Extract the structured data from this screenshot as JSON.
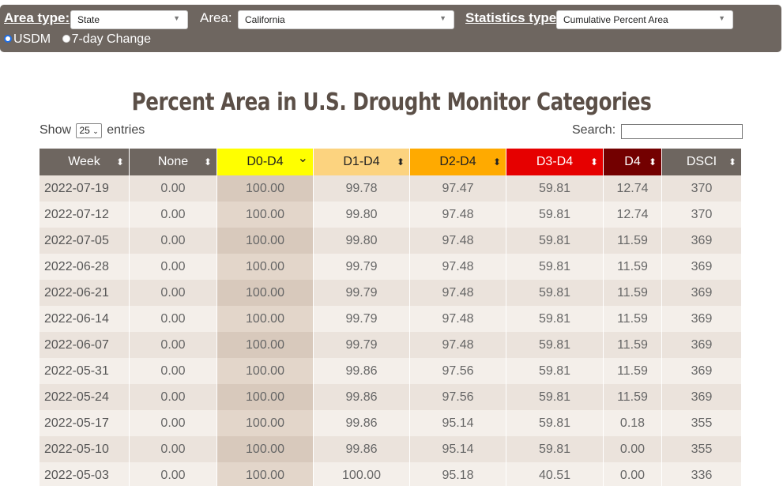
{
  "controls": {
    "area_type_label": "Area type:",
    "area_type_value": "State",
    "area_label": "Area:",
    "area_value": "California",
    "stats_type_label": "Statistics type:",
    "stats_type_value": "Cumulative Percent Area",
    "radio_usdm": "USDM",
    "radio_change": "7-day Change",
    "selected_radio": "USDM"
  },
  "title": "Percent Area in U.S. Drought Monitor Categories",
  "show_label": "Show",
  "entries_value": "25",
  "entries_label": "entries",
  "search_label": "Search:",
  "columns": [
    {
      "label": "Week",
      "bg": "#6e6660",
      "color": "#ffffff",
      "sort": "both"
    },
    {
      "label": "None",
      "bg": "#6e6660",
      "color": "#ffffff",
      "sort": "both"
    },
    {
      "label": "D0-D4",
      "bg": "#ffff00",
      "color": "#222222",
      "sort": "desc"
    },
    {
      "label": "D1-D4",
      "bg": "#fcd37f",
      "color": "#222222",
      "sort": "both"
    },
    {
      "label": "D2-D4",
      "bg": "#ffaa00",
      "color": "#222222",
      "sort": "both"
    },
    {
      "label": "D3-D4",
      "bg": "#e60000",
      "color": "#ffffff",
      "sort": "both"
    },
    {
      "label": "D4",
      "bg": "#730000",
      "color": "#ffffff",
      "sort": "both"
    },
    {
      "label": "DSCI",
      "bg": "#6e6660",
      "color": "#ffffff",
      "sort": "both"
    }
  ],
  "rows": [
    [
      "2022-07-19",
      "0.00",
      "100.00",
      "99.78",
      "97.47",
      "59.81",
      "12.74",
      "370"
    ],
    [
      "2022-07-12",
      "0.00",
      "100.00",
      "99.80",
      "97.48",
      "59.81",
      "12.74",
      "370"
    ],
    [
      "2022-07-05",
      "0.00",
      "100.00",
      "99.80",
      "97.48",
      "59.81",
      "11.59",
      "369"
    ],
    [
      "2022-06-28",
      "0.00",
      "100.00",
      "99.79",
      "97.48",
      "59.81",
      "11.59",
      "369"
    ],
    [
      "2022-06-21",
      "0.00",
      "100.00",
      "99.79",
      "97.48",
      "59.81",
      "11.59",
      "369"
    ],
    [
      "2022-06-14",
      "0.00",
      "100.00",
      "99.79",
      "97.48",
      "59.81",
      "11.59",
      "369"
    ],
    [
      "2022-06-07",
      "0.00",
      "100.00",
      "99.79",
      "97.48",
      "59.81",
      "11.59",
      "369"
    ],
    [
      "2022-05-31",
      "0.00",
      "100.00",
      "99.86",
      "97.56",
      "59.81",
      "11.59",
      "369"
    ],
    [
      "2022-05-24",
      "0.00",
      "100.00",
      "99.86",
      "97.56",
      "59.81",
      "11.59",
      "369"
    ],
    [
      "2022-05-17",
      "0.00",
      "100.00",
      "99.86",
      "95.14",
      "59.81",
      "0.18",
      "355"
    ],
    [
      "2022-05-10",
      "0.00",
      "100.00",
      "99.86",
      "95.14",
      "59.81",
      "0.00",
      "355"
    ],
    [
      "2022-05-03",
      "0.00",
      "100.00",
      "100.00",
      "95.18",
      "40.51",
      "0.00",
      "336"
    ]
  ],
  "colors": {
    "row_even": "#ebe3dc",
    "row_odd": "#f4efea",
    "sorted_even": "#d8c9bc",
    "sorted_odd": "#e3d6ca"
  }
}
